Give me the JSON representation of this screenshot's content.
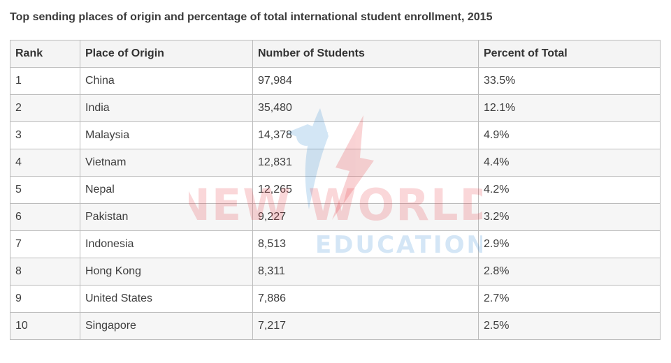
{
  "caption": "Top sending places of origin and percentage of total international student enrollment, 2015",
  "table": {
    "headers": [
      "Rank",
      "Place of Origin",
      "Number of Students",
      "Percent of Total"
    ],
    "rows": [
      [
        "1",
        "China",
        "97,984",
        "33.5%"
      ],
      [
        "2",
        "India",
        "35,480",
        "12.1%"
      ],
      [
        "3",
        "Malaysia",
        "14,378",
        "4.9%"
      ],
      [
        "4",
        "Vietnam",
        "12,831",
        "4.4%"
      ],
      [
        "5",
        "Nepal",
        "12,265",
        "4.2%"
      ],
      [
        "6",
        "Pakistan",
        "9,227",
        "3.2%"
      ],
      [
        "7",
        "Indonesia",
        "8,513",
        "2.9%"
      ],
      [
        "8",
        "Hong Kong",
        "8,311",
        "2.8%"
      ],
      [
        "9",
        "United States",
        "7,886",
        "2.7%"
      ],
      [
        "10",
        "Singapore",
        "7,217",
        "2.5%"
      ]
    ]
  },
  "watermark": {
    "line1": "NEW WORLD",
    "line2": "EDUCATION",
    "colors": {
      "primary": "#e8393f",
      "secondary": "#3b8fd6"
    }
  }
}
